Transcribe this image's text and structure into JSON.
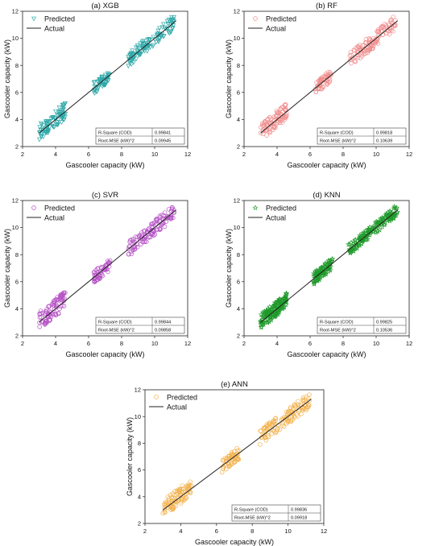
{
  "chart_data": [
    {
      "type": "scatter",
      "title": "(a) XGB",
      "xlabel": "Gascooler capacity (kW)",
      "ylabel": "Gascooler capacity (kW)",
      "xlim": [
        2,
        12
      ],
      "ylim": [
        2,
        12
      ],
      "xticks": [
        "2",
        "4",
        "6",
        "8",
        "10",
        "12"
      ],
      "yticks": [
        "2",
        "4",
        "6",
        "8",
        "10",
        "12"
      ],
      "grid": false,
      "legend_position": "top-left",
      "series": [
        {
          "name": "Predicted",
          "marker": "triangle-down",
          "color": "#2fa8a8",
          "clusters": [
            {
              "x": [
                3.0,
                4.6
              ],
              "y_offset_range": [
                -0.55,
                0.7
              ],
              "n": 90
            },
            {
              "x": [
                6.3,
                7.3
              ],
              "y_offset_range": [
                -0.45,
                0.45
              ],
              "n": 55
            },
            {
              "x": [
                8.4,
                11.2
              ],
              "y_offset_range": [
                -0.55,
                0.55
              ],
              "n": 120
            }
          ]
        },
        {
          "name": "Actual",
          "type": "line",
          "color": "#222222",
          "x": [
            3.0,
            11.3
          ],
          "y": [
            3.0,
            11.3
          ]
        }
      ],
      "stats": {
        "rows": [
          [
            "R-Square (COD)",
            "0.99841"
          ],
          [
            "Root-MSE (kW)^2",
            "0.09945"
          ]
        ]
      }
    },
    {
      "type": "scatter",
      "title": "(b) RF",
      "xlabel": "Gascooler capacity (kW)",
      "ylabel": "Gascooler capacity (kW)",
      "xlim": [
        2,
        12
      ],
      "ylim": [
        2,
        12
      ],
      "xticks": [
        "2",
        "4",
        "6",
        "8",
        "10",
        "12"
      ],
      "yticks": [
        "2",
        "4",
        "6",
        "8",
        "10",
        "12"
      ],
      "grid": false,
      "legend_position": "top-left",
      "series": [
        {
          "name": "Predicted",
          "marker": "circle",
          "color": "#f08c8c",
          "clusters": [
            {
              "x": [
                3.0,
                4.6
              ],
              "y_offset_range": [
                -0.55,
                0.7
              ],
              "n": 90
            },
            {
              "x": [
                6.3,
                7.3
              ],
              "y_offset_range": [
                -0.45,
                0.45
              ],
              "n": 55
            },
            {
              "x": [
                8.4,
                11.2
              ],
              "y_offset_range": [
                -0.55,
                0.55
              ],
              "n": 120
            }
          ]
        },
        {
          "name": "Actual",
          "type": "line",
          "color": "#222222",
          "x": [
            3.0,
            11.3
          ],
          "y": [
            3.0,
            11.3
          ]
        }
      ],
      "stats": {
        "rows": [
          [
            "R-Square (COD)",
            "0.99818"
          ],
          [
            "Root-MSE (kW)^2",
            "0.10639"
          ]
        ]
      }
    },
    {
      "type": "scatter",
      "title": "(c) SVR",
      "xlabel": "Gascooler capacity (kW)",
      "ylabel": "Gascooler capacity (kW)",
      "xlim": [
        2,
        12
      ],
      "ylim": [
        2,
        12
      ],
      "xticks": [
        "2",
        "4",
        "6",
        "8",
        "10",
        "12"
      ],
      "yticks": [
        "2",
        "4",
        "6",
        "8",
        "10",
        "12"
      ],
      "grid": false,
      "legend_position": "top-left",
      "series": [
        {
          "name": "Predicted",
          "marker": "circle",
          "color": "#b44fc4",
          "clusters": [
            {
              "x": [
                3.0,
                4.6
              ],
              "y_offset_range": [
                -0.55,
                0.75
              ],
              "n": 90
            },
            {
              "x": [
                6.3,
                7.3
              ],
              "y_offset_range": [
                -0.45,
                0.45
              ],
              "n": 55
            },
            {
              "x": [
                8.4,
                11.2
              ],
              "y_offset_range": [
                -0.55,
                0.55
              ],
              "n": 120
            }
          ]
        },
        {
          "name": "Actual",
          "type": "line",
          "color": "#222222",
          "x": [
            3.0,
            11.3
          ],
          "y": [
            3.0,
            11.3
          ]
        }
      ],
      "stats": {
        "rows": [
          [
            "R-Square (COD)",
            "0.99844"
          ],
          [
            "Root-MSE (kW)^2",
            "0.09858"
          ]
        ]
      }
    },
    {
      "type": "scatter",
      "title": "(d) KNN",
      "xlabel": "Gascooler capacity (kW)",
      "ylabel": "Gascooler capacity (kW)",
      "xlim": [
        2,
        12
      ],
      "ylim": [
        2,
        12
      ],
      "xticks": [
        "2",
        "4",
        "6",
        "8",
        "10",
        "12"
      ],
      "yticks": [
        "2",
        "4",
        "6",
        "8",
        "10",
        "12"
      ],
      "grid": false,
      "legend_position": "top-left",
      "series": [
        {
          "name": "Predicted",
          "marker": "star",
          "color": "#1f9a2a",
          "clusters": [
            {
              "x": [
                3.0,
                4.6
              ],
              "y_offset_range": [
                -0.5,
                0.6
              ],
              "n": 160
            },
            {
              "x": [
                6.2,
                7.4
              ],
              "y_offset_range": [
                -0.45,
                0.45
              ],
              "n": 90
            },
            {
              "x": [
                8.3,
                11.3
              ],
              "y_offset_range": [
                -0.4,
                0.45
              ],
              "n": 170
            }
          ]
        },
        {
          "name": "Actual",
          "type": "line",
          "color": "#222222",
          "x": [
            3.0,
            11.3
          ],
          "y": [
            3.0,
            11.3
          ]
        }
      ],
      "stats": {
        "rows": [
          [
            "R-Square (COD)",
            "0.99825"
          ],
          [
            "Root-MSE (kW)^2",
            "0.10536"
          ]
        ]
      }
    },
    {
      "type": "scatter",
      "title": "(e) ANN",
      "xlabel": "Gascooler capacity (kW)",
      "ylabel": "Gascooler capacity (kW)",
      "xlim": [
        2,
        12
      ],
      "ylim": [
        2,
        12
      ],
      "xticks": [
        "2",
        "4",
        "6",
        "8",
        "10",
        "12"
      ],
      "yticks": [
        "2",
        "4",
        "6",
        "8",
        "10",
        "12"
      ],
      "grid": false,
      "legend_position": "top-left",
      "series": [
        {
          "name": "Predicted",
          "marker": "circle",
          "color": "#f2b04a",
          "clusters": [
            {
              "x": [
                3.0,
                4.6
              ],
              "y_offset_range": [
                -0.55,
                0.75
              ],
              "n": 90
            },
            {
              "x": [
                6.3,
                7.3
              ],
              "y_offset_range": [
                -0.5,
                0.5
              ],
              "n": 55
            },
            {
              "x": [
                8.4,
                11.2
              ],
              "y_offset_range": [
                -0.55,
                0.6
              ],
              "n": 120
            }
          ]
        },
        {
          "name": "Actual",
          "type": "line",
          "color": "#222222",
          "x": [
            3.0,
            11.3
          ],
          "y": [
            3.0,
            11.3
          ]
        }
      ],
      "stats": {
        "rows": [
          [
            "R-Square (COD)",
            "0.99836"
          ],
          [
            "Root-MSE (kW)^2",
            "0.09918"
          ]
        ]
      }
    }
  ]
}
